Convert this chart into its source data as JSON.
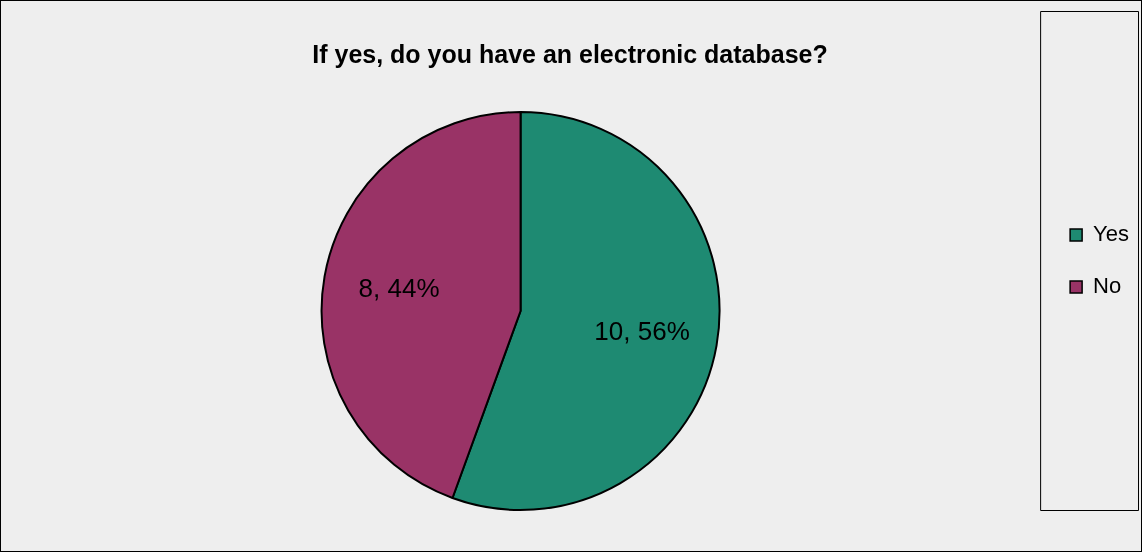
{
  "chart_data": {
    "type": "pie",
    "title": "If yes, do you have an electronic database?",
    "categories": [
      "Yes",
      "No"
    ],
    "values": [
      10,
      8
    ],
    "value_labels": [
      "10, 56%",
      "8, 44%"
    ],
    "colors": [
      "#1e8a72",
      "#993366"
    ],
    "legend": "right"
  }
}
